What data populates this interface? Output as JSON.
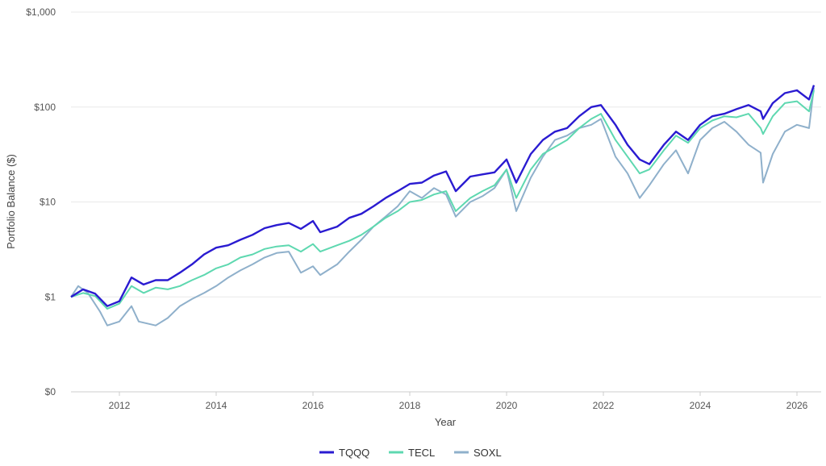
{
  "chart_data": {
    "type": "line",
    "title": "",
    "xlabel": "Year",
    "ylabel": "Portfolio Balance ($)",
    "y_scale": "log",
    "ylim": [
      0.1,
      1000
    ],
    "xlim": [
      2011.0,
      2026.5
    ],
    "y_ticks": [
      {
        "value": 1000,
        "label": "$1,000"
      },
      {
        "value": 100,
        "label": "$100"
      },
      {
        "value": 10,
        "label": "$10"
      },
      {
        "value": 1,
        "label": "$1"
      },
      {
        "value": 0.1,
        "label": "$0"
      }
    ],
    "x_ticks": [
      {
        "value": 2012,
        "label": "2012"
      },
      {
        "value": 2014,
        "label": "2014"
      },
      {
        "value": 2016,
        "label": "2016"
      },
      {
        "value": 2018,
        "label": "2018"
      },
      {
        "value": 2020,
        "label": "2020"
      },
      {
        "value": 2022,
        "label": "2022"
      },
      {
        "value": 2024,
        "label": "2024"
      },
      {
        "value": 2026,
        "label": "2026"
      }
    ],
    "grid": true,
    "legend_position": "bottom",
    "series": [
      {
        "name": "TQQQ",
        "color": "#2a1bd1",
        "points": [
          [
            2011.0,
            1.0
          ],
          [
            2011.25,
            1.2
          ],
          [
            2011.5,
            1.08
          ],
          [
            2011.75,
            0.8
          ],
          [
            2012.0,
            0.9
          ],
          [
            2012.25,
            1.6
          ],
          [
            2012.5,
            1.35
          ],
          [
            2012.75,
            1.5
          ],
          [
            2013.0,
            1.5
          ],
          [
            2013.25,
            1.8
          ],
          [
            2013.5,
            2.2
          ],
          [
            2013.75,
            2.8
          ],
          [
            2014.0,
            3.3
          ],
          [
            2014.25,
            3.5
          ],
          [
            2014.5,
            4.0
          ],
          [
            2014.75,
            4.5
          ],
          [
            2015.0,
            5.3
          ],
          [
            2015.25,
            5.7
          ],
          [
            2015.5,
            6.0
          ],
          [
            2015.75,
            5.2
          ],
          [
            2016.0,
            6.3
          ],
          [
            2016.15,
            4.8
          ],
          [
            2016.5,
            5.5
          ],
          [
            2016.75,
            6.8
          ],
          [
            2017.0,
            7.5
          ],
          [
            2017.25,
            9.0
          ],
          [
            2017.5,
            11.0
          ],
          [
            2017.75,
            13.0
          ],
          [
            2018.0,
            15.5
          ],
          [
            2018.25,
            16.0
          ],
          [
            2018.5,
            19.0
          ],
          [
            2018.75,
            21.0
          ],
          [
            2018.95,
            13.0
          ],
          [
            2019.25,
            18.5
          ],
          [
            2019.5,
            19.5
          ],
          [
            2019.75,
            20.5
          ],
          [
            2020.0,
            28.0
          ],
          [
            2020.2,
            16.0
          ],
          [
            2020.5,
            32.0
          ],
          [
            2020.75,
            45.0
          ],
          [
            2021.0,
            55.0
          ],
          [
            2021.25,
            60.0
          ],
          [
            2021.5,
            80.0
          ],
          [
            2021.75,
            100.0
          ],
          [
            2021.95,
            105.0
          ],
          [
            2022.25,
            65.0
          ],
          [
            2022.5,
            40.0
          ],
          [
            2022.75,
            28.0
          ],
          [
            2022.95,
            25.0
          ],
          [
            2023.25,
            40.0
          ],
          [
            2023.5,
            55.0
          ],
          [
            2023.75,
            45.0
          ],
          [
            2024.0,
            65.0
          ],
          [
            2024.25,
            80.0
          ],
          [
            2024.5,
            85.0
          ],
          [
            2024.75,
            95.0
          ],
          [
            2025.0,
            105.0
          ],
          [
            2025.25,
            90.0
          ],
          [
            2025.3,
            75.0
          ],
          [
            2025.5,
            110.0
          ],
          [
            2025.75,
            140.0
          ],
          [
            2026.0,
            150.0
          ],
          [
            2026.25,
            120.0
          ],
          [
            2026.35,
            170.0
          ]
        ]
      },
      {
        "name": "TECL",
        "color": "#5ed8b0",
        "points": [
          [
            2011.0,
            1.0
          ],
          [
            2011.25,
            1.1
          ],
          [
            2011.5,
            1.02
          ],
          [
            2011.75,
            0.75
          ],
          [
            2012.0,
            0.85
          ],
          [
            2012.25,
            1.3
          ],
          [
            2012.5,
            1.1
          ],
          [
            2012.75,
            1.25
          ],
          [
            2013.0,
            1.2
          ],
          [
            2013.25,
            1.3
          ],
          [
            2013.5,
            1.5
          ],
          [
            2013.75,
            1.7
          ],
          [
            2014.0,
            2.0
          ],
          [
            2014.25,
            2.2
          ],
          [
            2014.5,
            2.6
          ],
          [
            2014.75,
            2.8
          ],
          [
            2015.0,
            3.2
          ],
          [
            2015.25,
            3.4
          ],
          [
            2015.5,
            3.5
          ],
          [
            2015.75,
            3.0
          ],
          [
            2016.0,
            3.6
          ],
          [
            2016.15,
            3.0
          ],
          [
            2016.5,
            3.5
          ],
          [
            2016.75,
            3.9
          ],
          [
            2017.0,
            4.5
          ],
          [
            2017.25,
            5.5
          ],
          [
            2017.5,
            6.8
          ],
          [
            2017.75,
            8.0
          ],
          [
            2018.0,
            10.0
          ],
          [
            2018.25,
            10.5
          ],
          [
            2018.5,
            12.0
          ],
          [
            2018.75,
            13.0
          ],
          [
            2018.95,
            8.0
          ],
          [
            2019.25,
            11.0
          ],
          [
            2019.5,
            13.0
          ],
          [
            2019.75,
            15.0
          ],
          [
            2020.0,
            22.0
          ],
          [
            2020.2,
            11.0
          ],
          [
            2020.5,
            22.0
          ],
          [
            2020.75,
            32.0
          ],
          [
            2021.0,
            38.0
          ],
          [
            2021.25,
            45.0
          ],
          [
            2021.5,
            60.0
          ],
          [
            2021.75,
            75.0
          ],
          [
            2021.95,
            85.0
          ],
          [
            2022.25,
            45.0
          ],
          [
            2022.5,
            30.0
          ],
          [
            2022.75,
            20.0
          ],
          [
            2022.95,
            22.0
          ],
          [
            2023.25,
            35.0
          ],
          [
            2023.5,
            50.0
          ],
          [
            2023.75,
            42.0
          ],
          [
            2024.0,
            60.0
          ],
          [
            2024.25,
            72.0
          ],
          [
            2024.5,
            80.0
          ],
          [
            2024.75,
            78.0
          ],
          [
            2025.0,
            85.0
          ],
          [
            2025.25,
            60.0
          ],
          [
            2025.3,
            52.0
          ],
          [
            2025.5,
            80.0
          ],
          [
            2025.75,
            110.0
          ],
          [
            2026.0,
            115.0
          ],
          [
            2026.25,
            90.0
          ],
          [
            2026.35,
            150.0
          ]
        ]
      },
      {
        "name": "SOXL",
        "color": "#8fb0cb",
        "points": [
          [
            2011.0,
            1.0
          ],
          [
            2011.15,
            1.3
          ],
          [
            2011.35,
            1.1
          ],
          [
            2011.6,
            0.7
          ],
          [
            2011.75,
            0.5
          ],
          [
            2012.0,
            0.55
          ],
          [
            2012.25,
            0.8
          ],
          [
            2012.4,
            0.55
          ],
          [
            2012.75,
            0.5
          ],
          [
            2013.0,
            0.6
          ],
          [
            2013.25,
            0.8
          ],
          [
            2013.5,
            0.95
          ],
          [
            2013.75,
            1.1
          ],
          [
            2014.0,
            1.3
          ],
          [
            2014.25,
            1.6
          ],
          [
            2014.5,
            1.9
          ],
          [
            2014.75,
            2.2
          ],
          [
            2015.0,
            2.6
          ],
          [
            2015.25,
            2.9
          ],
          [
            2015.5,
            3.0
          ],
          [
            2015.75,
            1.8
          ],
          [
            2016.0,
            2.1
          ],
          [
            2016.15,
            1.7
          ],
          [
            2016.5,
            2.2
          ],
          [
            2016.75,
            3.0
          ],
          [
            2017.0,
            4.0
          ],
          [
            2017.25,
            5.5
          ],
          [
            2017.5,
            7.0
          ],
          [
            2017.75,
            9.0
          ],
          [
            2018.0,
            13.0
          ],
          [
            2018.25,
            11.0
          ],
          [
            2018.5,
            14.0
          ],
          [
            2018.75,
            12.0
          ],
          [
            2018.95,
            7.0
          ],
          [
            2019.25,
            10.0
          ],
          [
            2019.5,
            11.5
          ],
          [
            2019.75,
            14.0
          ],
          [
            2020.0,
            22.0
          ],
          [
            2020.2,
            8.0
          ],
          [
            2020.5,
            18.0
          ],
          [
            2020.75,
            30.0
          ],
          [
            2021.0,
            45.0
          ],
          [
            2021.25,
            50.0
          ],
          [
            2021.5,
            60.0
          ],
          [
            2021.75,
            65.0
          ],
          [
            2021.95,
            75.0
          ],
          [
            2022.25,
            30.0
          ],
          [
            2022.5,
            20.0
          ],
          [
            2022.75,
            11.0
          ],
          [
            2022.95,
            15.0
          ],
          [
            2023.25,
            25.0
          ],
          [
            2023.5,
            35.0
          ],
          [
            2023.75,
            20.0
          ],
          [
            2024.0,
            45.0
          ],
          [
            2024.25,
            60.0
          ],
          [
            2024.5,
            70.0
          ],
          [
            2024.75,
            55.0
          ],
          [
            2025.0,
            40.0
          ],
          [
            2025.25,
            33.0
          ],
          [
            2025.3,
            16.0
          ],
          [
            2025.5,
            32.0
          ],
          [
            2025.75,
            55.0
          ],
          [
            2026.0,
            65.0
          ],
          [
            2026.25,
            60.0
          ],
          [
            2026.35,
            160.0
          ]
        ]
      }
    ]
  }
}
